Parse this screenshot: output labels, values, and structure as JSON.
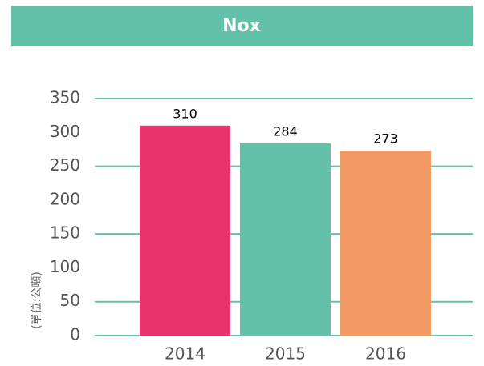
{
  "chart_data": {
    "type": "bar",
    "title": "Nox",
    "y_label": "(單位:公噸)",
    "categories": [
      "2014",
      "2015",
      "2016"
    ],
    "values": [
      310,
      284,
      273
    ],
    "colors": [
      "#e8336f",
      "#63c1aa",
      "#f29a61"
    ],
    "ylim": [
      0,
      350
    ],
    "yticks": [
      0,
      50,
      100,
      150,
      200,
      250,
      300,
      350
    ],
    "grid": true,
    "grid_color": "#63c1aa"
  }
}
